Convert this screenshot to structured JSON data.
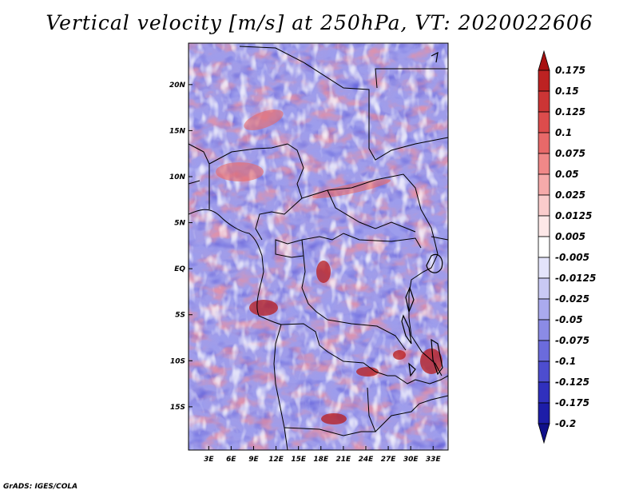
{
  "chart_data": {
    "type": "heatmap",
    "title": "Vertical velocity [m/s] at 250hPa, VT: 2020022606",
    "variable": "Vertical velocity",
    "units": "m/s",
    "level": "250hPa",
    "valid_time": "2020022606",
    "x_ticks": [
      {
        "value": 3,
        "label": "3E"
      },
      {
        "value": 6,
        "label": "6E"
      },
      {
        "value": 9,
        "label": "9E"
      },
      {
        "value": 12,
        "label": "12E"
      },
      {
        "value": 15,
        "label": "15E"
      },
      {
        "value": 18,
        "label": "18E"
      },
      {
        "value": 21,
        "label": "21E"
      },
      {
        "value": 24,
        "label": "24E"
      },
      {
        "value": 27,
        "label": "27E"
      },
      {
        "value": 30,
        "label": "30E"
      },
      {
        "value": 33,
        "label": "33E"
      }
    ],
    "y_ticks": [
      {
        "value": 20,
        "label": "20N"
      },
      {
        "value": 15,
        "label": "15N"
      },
      {
        "value": 10,
        "label": "10N"
      },
      {
        "value": 5,
        "label": "5N"
      },
      {
        "value": 0,
        "label": "EQ"
      },
      {
        "value": -5,
        "label": "5S"
      },
      {
        "value": -10,
        "label": "10S"
      },
      {
        "value": -15,
        "label": "15S"
      }
    ],
    "xlim": [
      0.3,
      35.0
    ],
    "ylim": [
      -19.7,
      24.5
    ],
    "colorbar": {
      "levels": [
        "0.175",
        "0.15",
        "0.125",
        "0.1",
        "0.075",
        "0.05",
        "0.025",
        "0.0125",
        "0.005",
        "-0.005",
        "-0.0125",
        "-0.025",
        "-0.05",
        "-0.075",
        "-0.1",
        "-0.125",
        "-0.175",
        "-0.2"
      ],
      "colors": [
        "#a81010",
        "#bd2222",
        "#cc3535",
        "#dd4c4c",
        "#e86969",
        "#f08888",
        "#f6aaaa",
        "#facccc",
        "#fde8e8",
        "#ffffff",
        "#e4e4fb",
        "#c9c9f4",
        "#aaaaee",
        "#8b8be6",
        "#6b6bdc",
        "#4d4dcf",
        "#3030bd",
        "#1d1da8",
        "#10108a"
      ]
    }
  },
  "footer": "GrADS: IGES/COLA"
}
